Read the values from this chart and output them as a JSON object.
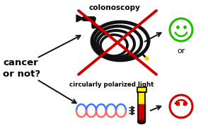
{
  "background_color": "#ffffff",
  "text_cancer": "cancer\nor not?",
  "text_colonoscopy": "colonoscopy",
  "text_circularly": "circularly polarized light",
  "text_or": "or",
  "fig_width": 2.94,
  "fig_height": 1.89,
  "green_face_color": "#22bb00",
  "red_face_color": "#cc0000",
  "red_cross_color": "#cc0000",
  "arrow_color": "#111111",
  "scope_color": "#111111",
  "blue_helix_color": "#4477ff",
  "pink_helix_color": "#ff6666",
  "tube_yellow": "#ffee00",
  "tube_red": "#cc0000",
  "dpi": 100
}
